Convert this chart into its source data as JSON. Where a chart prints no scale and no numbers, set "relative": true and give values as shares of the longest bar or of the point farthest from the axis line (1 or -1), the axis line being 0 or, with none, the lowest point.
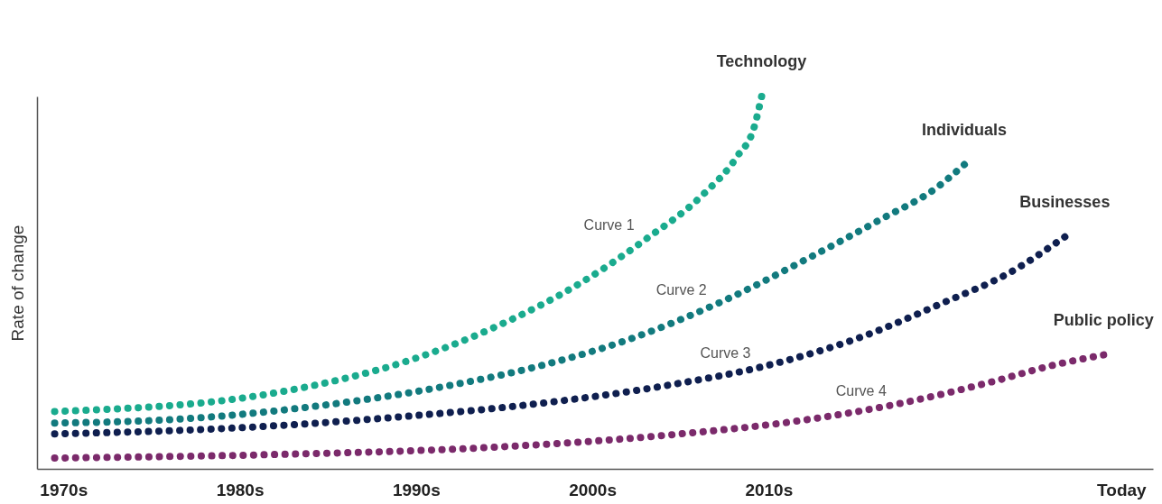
{
  "chart_data": {
    "type": "line",
    "relative": true,
    "ylabel": "Rate of change",
    "xlim": [
      1968.5,
      2031.8
    ],
    "xticks": [
      {
        "value": 1970,
        "label": "1970s"
      },
      {
        "value": 1980,
        "label": "1980s"
      },
      {
        "value": 1990,
        "label": "1990s"
      },
      {
        "value": 2000,
        "label": "2000s"
      },
      {
        "value": 2010,
        "label": "2010s"
      },
      {
        "value": 2030,
        "label": "Today"
      }
    ],
    "line_style": "dotted",
    "grid": false,
    "legend": false,
    "series": [
      {
        "name": "Technology",
        "color": "#1aab8e",
        "x": [
          1969.5,
          1973.8,
          1979,
          1984.1,
          1989.2,
          1994.4,
          1999.5,
          2003.1,
          2006.2,
          2008.2,
          2009.2,
          2009.6
        ],
        "values": [
          0.154,
          0.163,
          0.183,
          0.223,
          0.285,
          0.379,
          0.504,
          0.619,
          0.733,
          0.838,
          0.921,
          1.0
        ]
      },
      {
        "name": "Individuals",
        "color": "#127a7e",
        "x": [
          1969.5,
          1976.4,
          1984.1,
          1991.8,
          1996.9,
          2002.1,
          2007.2,
          2012.3,
          2016.4,
          2019.5,
          2021.1
        ],
        "values": [
          0.123,
          0.133,
          0.167,
          0.223,
          0.275,
          0.348,
          0.446,
          0.567,
          0.671,
          0.754,
          0.817
        ]
      },
      {
        "name": "Businesses",
        "color": "#0f1f4f",
        "x": [
          1969.5,
          1979,
          1989.2,
          1996.9,
          2004.6,
          2009.7,
          2014.9,
          2020,
          2023.6,
          2026.8
        ],
        "values": [
          0.094,
          0.108,
          0.14,
          0.175,
          0.227,
          0.275,
          0.348,
          0.448,
          0.525,
          0.623
        ]
      },
      {
        "name": "Public policy",
        "color": "#7b2a6b",
        "x": [
          1969.5,
          1981.5,
          1994.4,
          2004.6,
          2012.3,
          2017.4,
          2022.6,
          2026.2,
          2029
        ],
        "values": [
          0.029,
          0.038,
          0.058,
          0.092,
          0.133,
          0.175,
          0.233,
          0.279,
          0.306
        ]
      }
    ],
    "annotations": [
      {
        "text": "Curve 1",
        "x": 2003.1,
        "y": 0.619
      },
      {
        "text": "Curve 2",
        "x": 2007.2,
        "y": 0.446
      },
      {
        "text": "Curve 3",
        "x": 2009.7,
        "y": 0.275
      },
      {
        "text": "Curve 4",
        "x": 2017.4,
        "y": 0.175
      }
    ]
  }
}
